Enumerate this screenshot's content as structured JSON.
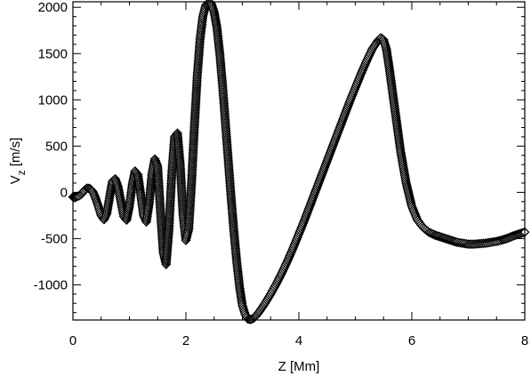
{
  "chart_data": {
    "type": "scatter",
    "marker": "diamond",
    "marker_color": "#000000",
    "xlabel": "Z [Mm]",
    "ylabel_main": "V",
    "ylabel_sub": "z",
    "ylabel_unit": "[m/s]",
    "xlim": [
      0,
      8
    ],
    "ylim": [
      -1380,
      2060
    ],
    "xticks": [
      0,
      2,
      4,
      6,
      8
    ],
    "xtick_labels": [
      "0",
      "2",
      "4",
      "6",
      "8"
    ],
    "yticks": [
      -1000,
      -500,
      0,
      500,
      1000,
      1500,
      2000
    ],
    "ytick_labels": [
      "-1000",
      "-500",
      "0",
      "500",
      "1000",
      "1500",
      "2000"
    ],
    "grid": false,
    "legend": "none",
    "series": [
      {
        "points": [
          [
            0.0,
            -50
          ],
          [
            0.05,
            -48
          ],
          [
            0.1,
            -40
          ],
          [
            0.15,
            -20
          ],
          [
            0.2,
            20
          ],
          [
            0.25,
            45
          ],
          [
            0.3,
            40
          ],
          [
            0.35,
            10
          ],
          [
            0.4,
            -60
          ],
          [
            0.45,
            -150
          ],
          [
            0.5,
            -250
          ],
          [
            0.55,
            -295
          ],
          [
            0.6,
            -230
          ],
          [
            0.65,
            -50
          ],
          [
            0.7,
            120
          ],
          [
            0.75,
            145
          ],
          [
            0.8,
            60
          ],
          [
            0.85,
            -100
          ],
          [
            0.9,
            -260
          ],
          [
            0.95,
            -300
          ],
          [
            1.0,
            -150
          ],
          [
            1.05,
            80
          ],
          [
            1.1,
            230
          ],
          [
            1.15,
            190
          ],
          [
            1.2,
            -20
          ],
          [
            1.25,
            -250
          ],
          [
            1.3,
            -320
          ],
          [
            1.35,
            -120
          ],
          [
            1.4,
            200
          ],
          [
            1.45,
            360
          ],
          [
            1.5,
            280
          ],
          [
            1.55,
            -200
          ],
          [
            1.6,
            -650
          ],
          [
            1.65,
            -780
          ],
          [
            1.7,
            -400
          ],
          [
            1.75,
            200
          ],
          [
            1.8,
            600
          ],
          [
            1.85,
            640
          ],
          [
            1.9,
            300
          ],
          [
            1.95,
            -250
          ],
          [
            2.0,
            -520
          ],
          [
            2.05,
            -400
          ],
          [
            2.1,
            100
          ],
          [
            2.15,
            700
          ],
          [
            2.2,
            1250
          ],
          [
            2.25,
            1650
          ],
          [
            2.3,
            1900
          ],
          [
            2.35,
            2020
          ],
          [
            2.4,
            2050
          ],
          [
            2.45,
            2040
          ],
          [
            2.5,
            1950
          ],
          [
            2.55,
            1780
          ],
          [
            2.6,
            1500
          ],
          [
            2.65,
            1150
          ],
          [
            2.7,
            750
          ],
          [
            2.75,
            350
          ],
          [
            2.8,
            -50
          ],
          [
            2.85,
            -420
          ],
          [
            2.9,
            -750
          ],
          [
            2.95,
            -1020
          ],
          [
            3.0,
            -1220
          ],
          [
            3.05,
            -1320
          ],
          [
            3.1,
            -1370
          ],
          [
            3.15,
            -1375
          ],
          [
            3.2,
            -1360
          ],
          [
            3.25,
            -1330
          ],
          [
            3.3,
            -1290
          ],
          [
            3.4,
            -1200
          ],
          [
            3.5,
            -1100
          ],
          [
            3.6,
            -990
          ],
          [
            3.7,
            -870
          ],
          [
            3.8,
            -740
          ],
          [
            3.9,
            -600
          ],
          [
            4.0,
            -450
          ],
          [
            4.1,
            -300
          ],
          [
            4.2,
            -140
          ],
          [
            4.3,
            20
          ],
          [
            4.4,
            180
          ],
          [
            4.5,
            340
          ],
          [
            4.6,
            500
          ],
          [
            4.7,
            660
          ],
          [
            4.8,
            820
          ],
          [
            4.9,
            980
          ],
          [
            5.0,
            1130
          ],
          [
            5.1,
            1280
          ],
          [
            5.2,
            1420
          ],
          [
            5.3,
            1550
          ],
          [
            5.4,
            1640
          ],
          [
            5.45,
            1670
          ],
          [
            5.5,
            1650
          ],
          [
            5.55,
            1550
          ],
          [
            5.6,
            1350
          ],
          [
            5.7,
            900
          ],
          [
            5.8,
            450
          ],
          [
            5.9,
            100
          ],
          [
            6.0,
            -150
          ],
          [
            6.1,
            -300
          ],
          [
            6.2,
            -380
          ],
          [
            6.3,
            -430
          ],
          [
            6.4,
            -460
          ],
          [
            6.5,
            -480
          ],
          [
            6.6,
            -500
          ],
          [
            6.7,
            -520
          ],
          [
            6.8,
            -540
          ],
          [
            6.9,
            -550
          ],
          [
            7.0,
            -560
          ],
          [
            7.1,
            -560
          ],
          [
            7.2,
            -555
          ],
          [
            7.3,
            -550
          ],
          [
            7.4,
            -540
          ],
          [
            7.5,
            -530
          ],
          [
            7.6,
            -515
          ],
          [
            7.7,
            -495
          ],
          [
            7.8,
            -470
          ],
          [
            7.9,
            -450
          ],
          [
            8.0,
            -430
          ]
        ]
      }
    ]
  }
}
